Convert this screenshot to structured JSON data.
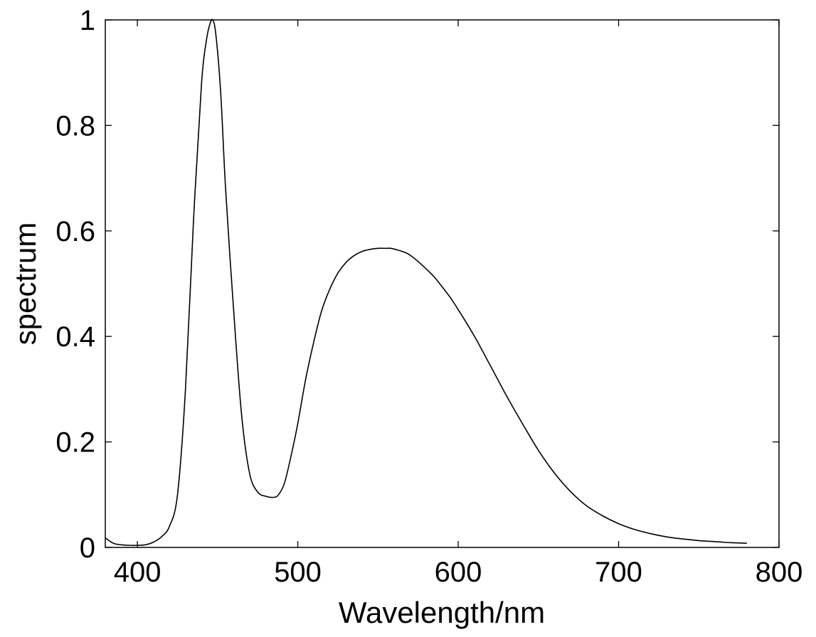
{
  "chart_data": {
    "type": "line",
    "title": "",
    "xlabel": "Wavelength/nm",
    "ylabel": "spectrum",
    "xlim": [
      380,
      800
    ],
    "ylim": [
      0,
      1
    ],
    "x_ticks": [
      400,
      500,
      600,
      700,
      800
    ],
    "y_ticks": [
      0,
      0.2,
      0.4,
      0.6,
      0.8,
      1
    ],
    "x_tick_labels": [
      "400",
      "500",
      "600",
      "700",
      "800"
    ],
    "y_tick_labels": [
      "0",
      "0.2",
      "0.4",
      "0.6",
      "0.8",
      "1"
    ],
    "grid": false,
    "legend": "none",
    "line_color": "#000000",
    "series": [
      {
        "x": [
          380,
          385,
          390,
          395,
          400,
          405,
          410,
          415,
          420,
          425,
          430,
          435,
          440,
          443,
          445,
          447,
          449,
          452,
          455,
          460,
          465,
          470,
          475,
          480,
          485,
          488,
          492,
          497,
          500,
          505,
          510,
          515,
          520,
          525,
          530,
          535,
          540,
          545,
          550,
          555,
          558,
          562,
          567,
          570,
          575,
          580,
          585,
          590,
          595,
          600,
          610,
          620,
          630,
          640,
          650,
          660,
          670,
          680,
          690,
          700,
          710,
          720,
          730,
          740,
          750,
          760,
          770,
          780
        ],
        "y": [
          0.018,
          0.008,
          0.005,
          0.004,
          0.004,
          0.005,
          0.01,
          0.02,
          0.04,
          0.1,
          0.3,
          0.62,
          0.88,
          0.96,
          0.99,
          1.0,
          0.97,
          0.86,
          0.68,
          0.45,
          0.25,
          0.14,
          0.105,
          0.097,
          0.095,
          0.1,
          0.125,
          0.19,
          0.235,
          0.32,
          0.39,
          0.45,
          0.49,
          0.52,
          0.54,
          0.553,
          0.561,
          0.565,
          0.567,
          0.567,
          0.567,
          0.564,
          0.559,
          0.554,
          0.542,
          0.528,
          0.513,
          0.494,
          0.474,
          0.451,
          0.401,
          0.345,
          0.288,
          0.235,
          0.184,
          0.141,
          0.106,
          0.079,
          0.06,
          0.045,
          0.034,
          0.026,
          0.02,
          0.016,
          0.013,
          0.011,
          0.009,
          0.008
        ]
      }
    ]
  }
}
